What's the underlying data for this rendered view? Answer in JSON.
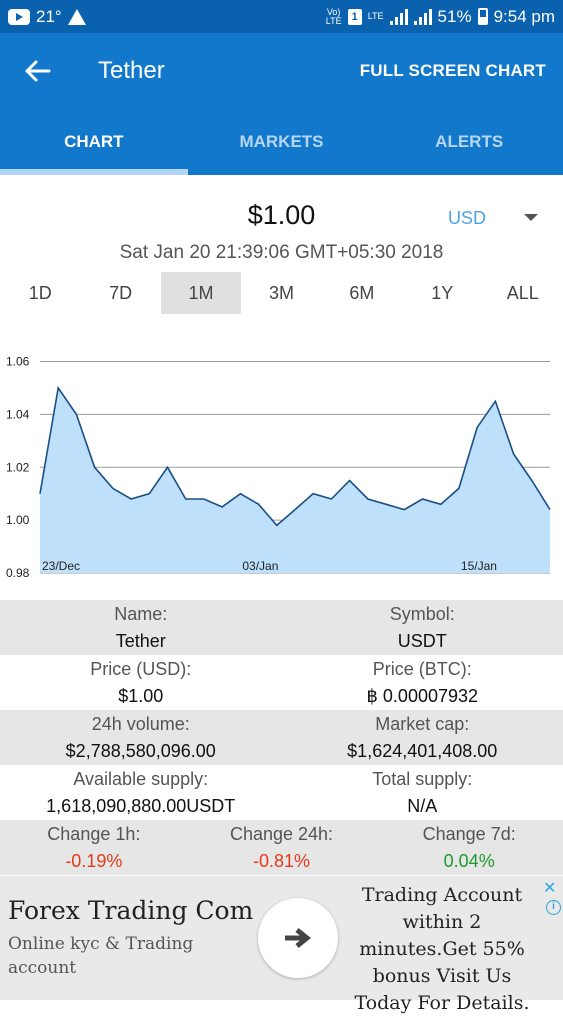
{
  "status": {
    "temperature": "21°",
    "network": "LTE",
    "volte": "Vo) LTE",
    "sim": "1",
    "battery": "51%",
    "time": "9:54 pm"
  },
  "appbar": {
    "title": "Tether",
    "full_screen_label": "FULL SCREEN CHART"
  },
  "tabs": [
    {
      "label": "CHART",
      "active": true
    },
    {
      "label": "MARKETS",
      "active": false
    },
    {
      "label": "ALERTS",
      "active": false
    }
  ],
  "price": {
    "value": "$1.00",
    "currency": "USD",
    "timestamp": "Sat Jan 20 21:39:06 GMT+05:30 2018"
  },
  "ranges": [
    {
      "label": "1D",
      "active": false
    },
    {
      "label": "7D",
      "active": false
    },
    {
      "label": "1M",
      "active": true
    },
    {
      "label": "3M",
      "active": false
    },
    {
      "label": "6M",
      "active": false
    },
    {
      "label": "1Y",
      "active": false
    },
    {
      "label": "ALL",
      "active": false
    }
  ],
  "chart_data": {
    "type": "area",
    "title": "",
    "xlabel": "",
    "ylabel": "",
    "x_ticks": [
      "23/Dec",
      "03/Jan",
      "15/Jan"
    ],
    "y_ticks": [
      0.98,
      1.0,
      1.02,
      1.04,
      1.06
    ],
    "ylim": [
      0.98,
      1.067
    ],
    "xlim": [
      "2017-12-23",
      "2018-01-20"
    ],
    "grid": true,
    "fill_color": "#bfe0fb",
    "line_color": "#1a4f86",
    "series": [
      {
        "x": [
          "2017-12-23",
          "2017-12-24",
          "2017-12-25",
          "2017-12-26",
          "2017-12-27",
          "2017-12-28",
          "2017-12-29",
          "2017-12-30",
          "2017-12-31",
          "2018-01-01",
          "2018-01-02",
          "2018-01-03",
          "2018-01-04",
          "2018-01-05",
          "2018-01-06",
          "2018-01-07",
          "2018-01-08",
          "2018-01-09",
          "2018-01-10",
          "2018-01-11",
          "2018-01-12",
          "2018-01-13",
          "2018-01-14",
          "2018-01-15",
          "2018-01-16",
          "2018-01-17",
          "2018-01-18",
          "2018-01-19",
          "2018-01-20"
        ],
        "values": [
          1.01,
          1.05,
          1.04,
          1.02,
          1.012,
          1.008,
          1.01,
          1.02,
          1.008,
          1.008,
          1.005,
          1.01,
          1.006,
          0.998,
          1.004,
          1.01,
          1.008,
          1.015,
          1.008,
          1.006,
          1.004,
          1.008,
          1.006,
          1.012,
          1.035,
          1.045,
          1.025,
          1.015,
          1.004
        ]
      }
    ]
  },
  "info": {
    "name_label": "Name:",
    "name": "Tether",
    "symbol_label": "Symbol:",
    "symbol": "USDT",
    "price_usd_label": "Price (USD):",
    "price_usd": "$1.00",
    "price_btc_label": "Price (BTC):",
    "price_btc": "฿ 0.00007932",
    "volume_label": "24h volume:",
    "volume": "$2,788,580,096.00",
    "marketcap_label": "Market cap:",
    "marketcap": "$1,624,401,408.00",
    "avail_label": "Available supply:",
    "avail": "1,618,090,880.00USDT",
    "total_label": "Total supply:",
    "total": "N/A",
    "ch1h_label": "Change 1h:",
    "ch1h": "-0.19%",
    "ch24h_label": "Change 24h:",
    "ch24h": "-0.81%",
    "ch7d_label": "Change 7d:",
    "ch7d": "0.04%"
  },
  "ad": {
    "title": "Forex Trading Com",
    "subtitle": "Online kyc & Trading account",
    "body": "Trading Account within 2 minutes.Get 55% bonus Visit Us Today For Details.",
    "close_glyph": "✕",
    "info_glyph": "i"
  }
}
